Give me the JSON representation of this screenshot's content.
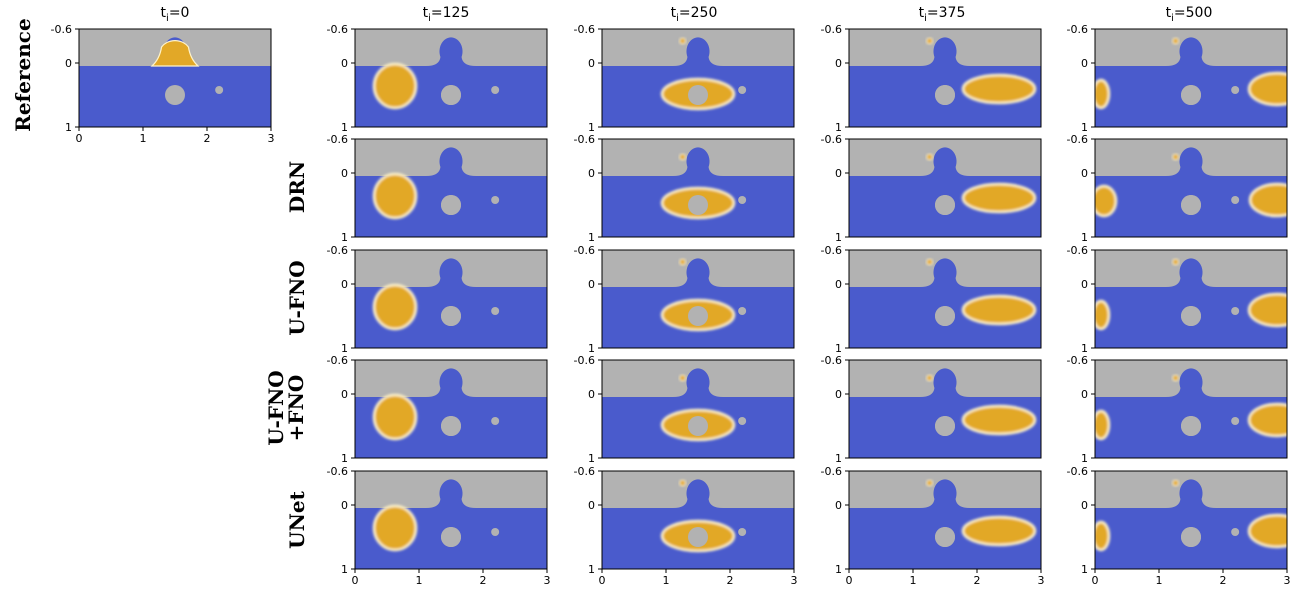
{
  "columns": [
    {
      "time_prefix": "t",
      "time_sub": "i",
      "time_value": "=0"
    },
    {
      "time_prefix": "t",
      "time_sub": "i",
      "time_value": "=125"
    },
    {
      "time_prefix": "t",
      "time_sub": "i",
      "time_value": "=250"
    },
    {
      "time_prefix": "t",
      "time_sub": "i",
      "time_value": "=375"
    },
    {
      "time_prefix": "t",
      "time_sub": "i",
      "time_value": "=500"
    }
  ],
  "rows": [
    {
      "label_lines": [
        "Reference"
      ]
    },
    {
      "label_lines": [
        "DRN"
      ]
    },
    {
      "label_lines": [
        "U-FNO"
      ]
    },
    {
      "label_lines": [
        "U-FNO",
        "+FNO"
      ]
    },
    {
      "label_lines": [
        "UNet"
      ]
    }
  ],
  "axes": {
    "y_ticks": [
      "-0.6",
      "0",
      "1"
    ],
    "x_ticks": [
      "0",
      "1",
      "2",
      "3"
    ]
  },
  "colors": {
    "fluid": "#4a5bcc",
    "solid": "#b2b2b2",
    "droplet": "#e2a827",
    "droplet_edge": "#fff3c8"
  }
}
